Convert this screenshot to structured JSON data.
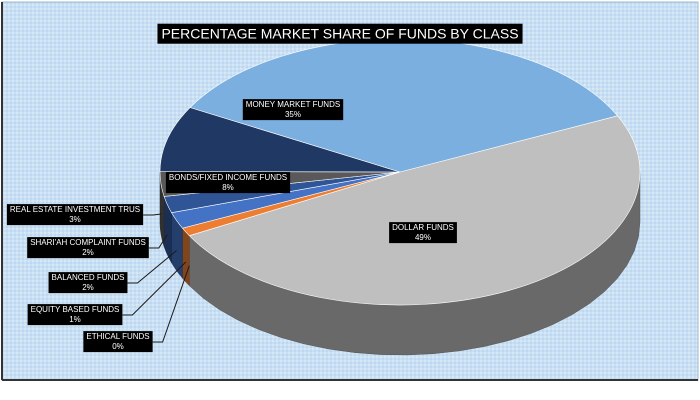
{
  "chart_data": {
    "type": "pie",
    "title": "PERCENTAGE MARKET SHARE OF FUNDS BY CLASS",
    "categories": [
      "DOLLAR FUNDS",
      "ETHICAL FUNDS",
      "EQUITY BASED FUNDS",
      "BALANCED FUNDS",
      "SHARI'AH COMPLAINT FUNDS",
      "REAL ESTATE INVESTMENT TRUS",
      "BONDS/FIXED INCOME FUNDS",
      "MONEY MARKET FUNDS"
    ],
    "values": [
      49,
      0,
      1,
      2,
      2,
      3,
      8,
      35
    ],
    "value_labels": [
      "49%",
      "0%",
      "1%",
      "2%",
      "2%",
      "3%",
      "8%",
      "35%"
    ],
    "colors": [
      "#bfbfbf",
      "#a5a5a5",
      "#ed7d31",
      "#4472c4",
      "#2f5597",
      "#595959",
      "#203864",
      "#7aafe0"
    ]
  }
}
